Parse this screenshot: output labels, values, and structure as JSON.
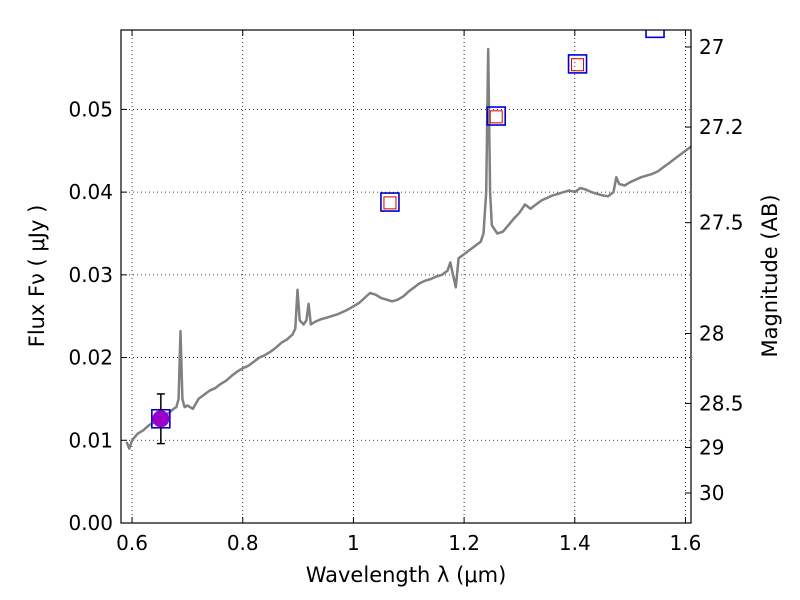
{
  "chart_data": {
    "type": "scatter",
    "xlabel": "Wavelength  λ (μm)",
    "ylabel": "Flux  Fν  ( μJy )",
    "y2label": "Magnitude (AB)",
    "xlim": [
      0.58,
      1.61
    ],
    "ylim": [
      0.0,
      0.0596
    ],
    "grid": true,
    "x_ticks": [
      {
        "value": 0.6,
        "label": "0.6"
      },
      {
        "value": 0.8,
        "label": "0.8"
      },
      {
        "value": 1.0,
        "label": "1"
      },
      {
        "value": 1.2,
        "label": "1.2"
      },
      {
        "value": 1.4,
        "label": "1.4"
      },
      {
        "value": 1.6,
        "label": "1.6"
      }
    ],
    "y_ticks": [
      {
        "value": 0.0,
        "label": "0.00"
      },
      {
        "value": 0.01,
        "label": "0.01"
      },
      {
        "value": 0.02,
        "label": "0.02"
      },
      {
        "value": 0.03,
        "label": "0.03"
      },
      {
        "value": 0.04,
        "label": "0.04"
      },
      {
        "value": 0.05,
        "label": "0.05"
      }
    ],
    "y2_ticks": [
      {
        "value": 27.0,
        "label": "27"
      },
      {
        "value": 27.2,
        "label": "27.2"
      },
      {
        "value": 27.5,
        "label": "27.5"
      },
      {
        "value": 28.0,
        "label": "28"
      },
      {
        "value": 28.5,
        "label": "28.5"
      },
      {
        "value": 29.0,
        "label": "29"
      },
      {
        "value": 30.0,
        "label": "30"
      }
    ],
    "spectrum": {
      "color": "#808080",
      "points": [
        [
          0.59,
          0.0098
        ],
        [
          0.595,
          0.009
        ],
        [
          0.6,
          0.01
        ],
        [
          0.61,
          0.0108
        ],
        [
          0.62,
          0.0112
        ],
        [
          0.63,
          0.0118
        ],
        [
          0.64,
          0.0122
        ],
        [
          0.65,
          0.0126
        ],
        [
          0.66,
          0.013
        ],
        [
          0.67,
          0.0135
        ],
        [
          0.675,
          0.0138
        ],
        [
          0.68,
          0.014
        ],
        [
          0.684,
          0.015
        ],
        [
          0.6875,
          0.0232
        ],
        [
          0.691,
          0.015
        ],
        [
          0.695,
          0.014
        ],
        [
          0.7,
          0.0142
        ],
        [
          0.71,
          0.0138
        ],
        [
          0.72,
          0.015
        ],
        [
          0.73,
          0.0155
        ],
        [
          0.74,
          0.016
        ],
        [
          0.75,
          0.0163
        ],
        [
          0.76,
          0.0168
        ],
        [
          0.77,
          0.0172
        ],
        [
          0.78,
          0.0178
        ],
        [
          0.79,
          0.0183
        ],
        [
          0.8,
          0.0187
        ],
        [
          0.81,
          0.019
        ],
        [
          0.82,
          0.0195
        ],
        [
          0.83,
          0.02
        ],
        [
          0.84,
          0.0203
        ],
        [
          0.85,
          0.0207
        ],
        [
          0.86,
          0.0212
        ],
        [
          0.87,
          0.0218
        ],
        [
          0.88,
          0.0222
        ],
        [
          0.89,
          0.0228
        ],
        [
          0.895,
          0.0235
        ],
        [
          0.899,
          0.0282
        ],
        [
          0.903,
          0.0245
        ],
        [
          0.91,
          0.024
        ],
        [
          0.915,
          0.0245
        ],
        [
          0.919,
          0.0265
        ],
        [
          0.923,
          0.024
        ],
        [
          0.93,
          0.0243
        ],
        [
          0.94,
          0.0246
        ],
        [
          0.95,
          0.0248
        ],
        [
          0.96,
          0.025
        ],
        [
          0.97,
          0.0252
        ],
        [
          0.98,
          0.0255
        ],
        [
          0.99,
          0.0258
        ],
        [
          1.0,
          0.0262
        ],
        [
          1.01,
          0.0266
        ],
        [
          1.02,
          0.0272
        ],
        [
          1.03,
          0.0278
        ],
        [
          1.04,
          0.0276
        ],
        [
          1.05,
          0.0272
        ],
        [
          1.06,
          0.027
        ],
        [
          1.07,
          0.0268
        ],
        [
          1.08,
          0.027
        ],
        [
          1.09,
          0.0274
        ],
        [
          1.1,
          0.028
        ],
        [
          1.11,
          0.0285
        ],
        [
          1.12,
          0.029
        ],
        [
          1.13,
          0.0293
        ],
        [
          1.14,
          0.0295
        ],
        [
          1.15,
          0.0298
        ],
        [
          1.16,
          0.03
        ],
        [
          1.17,
          0.0305
        ],
        [
          1.175,
          0.0315
        ],
        [
          1.18,
          0.03
        ],
        [
          1.185,
          0.0285
        ],
        [
          1.19,
          0.032
        ],
        [
          1.2,
          0.0325
        ],
        [
          1.21,
          0.033
        ],
        [
          1.22,
          0.0335
        ],
        [
          1.23,
          0.034
        ],
        [
          1.235,
          0.035
        ],
        [
          1.24,
          0.04
        ],
        [
          1.2435,
          0.0573
        ],
        [
          1.247,
          0.04
        ],
        [
          1.25,
          0.036
        ],
        [
          1.26,
          0.035
        ],
        [
          1.27,
          0.0352
        ],
        [
          1.28,
          0.036
        ],
        [
          1.29,
          0.0368
        ],
        [
          1.3,
          0.0375
        ],
        [
          1.31,
          0.0385
        ],
        [
          1.32,
          0.038
        ],
        [
          1.33,
          0.0385
        ],
        [
          1.34,
          0.039
        ],
        [
          1.35,
          0.0393
        ],
        [
          1.36,
          0.0396
        ],
        [
          1.37,
          0.0398
        ],
        [
          1.38,
          0.04
        ],
        [
          1.39,
          0.0402
        ],
        [
          1.4,
          0.04
        ],
        [
          1.41,
          0.0405
        ],
        [
          1.42,
          0.0403
        ],
        [
          1.43,
          0.04
        ],
        [
          1.44,
          0.0398
        ],
        [
          1.45,
          0.0396
        ],
        [
          1.46,
          0.0395
        ],
        [
          1.47,
          0.04
        ],
        [
          1.475,
          0.0418
        ],
        [
          1.48,
          0.041
        ],
        [
          1.49,
          0.0408
        ],
        [
          1.5,
          0.0412
        ],
        [
          1.51,
          0.0415
        ],
        [
          1.52,
          0.0418
        ],
        [
          1.53,
          0.042
        ],
        [
          1.54,
          0.0422
        ],
        [
          1.55,
          0.0425
        ],
        [
          1.56,
          0.043
        ],
        [
          1.57,
          0.0435
        ],
        [
          1.58,
          0.044
        ],
        [
          1.59,
          0.0445
        ],
        [
          1.6,
          0.045
        ],
        [
          1.61,
          0.0455
        ]
      ]
    },
    "photometry_model": {
      "marker": "open square",
      "color": "#0000cc",
      "points": [
        [
          0.652,
          0.0126
        ],
        [
          1.066,
          0.0388
        ],
        [
          1.258,
          0.0492
        ],
        [
          1.405,
          0.0555
        ],
        [
          1.545,
          0.0598
        ]
      ]
    },
    "photometry_fit": {
      "marker": "open square",
      "color": "#cc0000",
      "points": [
        [
          1.066,
          0.0387
        ],
        [
          1.258,
          0.0491
        ],
        [
          1.405,
          0.0554
        ]
      ]
    },
    "measurement": {
      "marker": "filled circle",
      "color": "#9900cc",
      "x": 0.652,
      "y": 0.0126,
      "yerr_low": 0.0096,
      "yerr_high": 0.0156
    }
  }
}
